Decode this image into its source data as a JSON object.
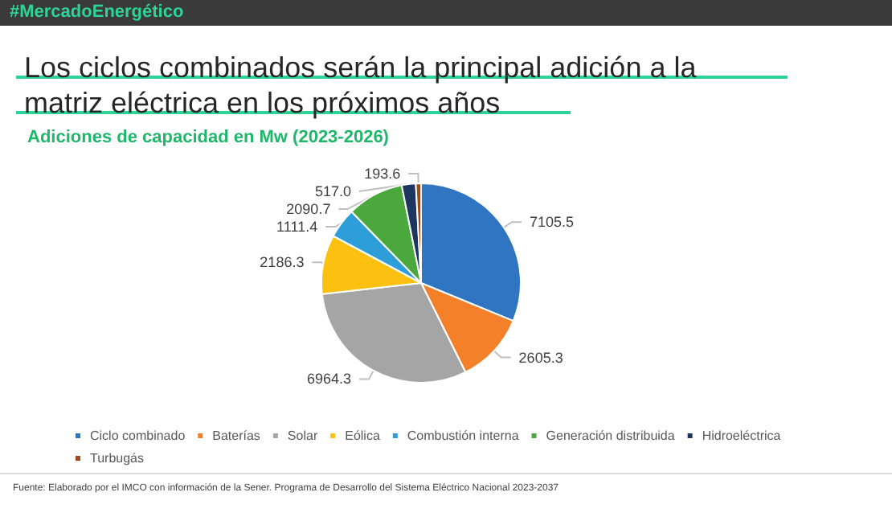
{
  "chart_data": {
    "type": "pie",
    "title": "Los ciclos combinados serán la principal adición a la matriz eléctrica en los próximos años",
    "subtitle": "Adiciones de capacidad en Mw (2023-2026)",
    "categories": [
      "Ciclo combinado",
      "Baterías",
      "Solar",
      "Eólica",
      "Combustión interna",
      "Generación distribuida",
      "Hidroeléctrica",
      "Turbugás"
    ],
    "values": [
      7105.5,
      2605.3,
      6964.3,
      2186.3,
      1111.4,
      2090.7,
      517.0,
      193.6
    ],
    "value_labels": [
      "7105.5",
      "2605.3",
      "6964.3",
      "2186.3",
      "1111.4",
      "2090.7",
      "517.0",
      "193.6"
    ],
    "colors": [
      "#2f75c2",
      "#f4802a",
      "#a5a5a5",
      "#fcc010",
      "#2e9ed8",
      "#4aa83c",
      "#1c3660",
      "#a0481a"
    ],
    "legend": "bottom",
    "annotations": [
      "#MercadoEnergético",
      "Fuente: Elaborado por el IMCO con información de la Sener. Programa de Desarrollo del Sistema Eléctrico Nacional 2023-2037"
    ]
  }
}
